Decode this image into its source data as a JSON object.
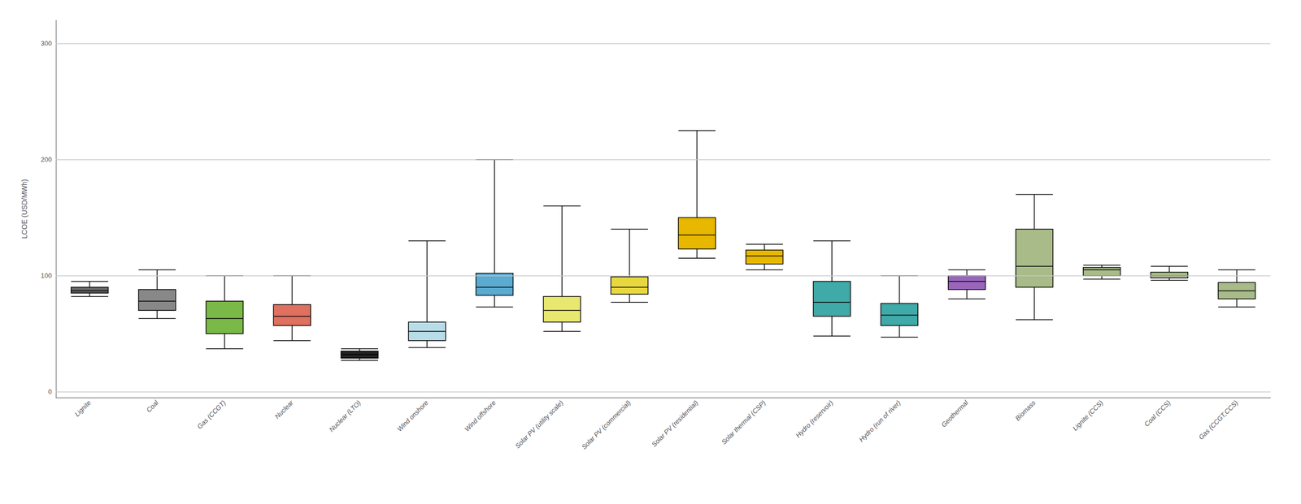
{
  "chart_data": {
    "type": "box",
    "ylabel": "LCOE (USD/MWh)",
    "categories": [
      "Lignite",
      "Coal",
      "Gas (CCGT)",
      "Nuclear",
      "Nuclear (LTO)",
      "Wind onshore",
      "Wind offshore",
      "Solar PV (utility scale)",
      "Solar PV (commercial)",
      "Solar PV (residential)",
      "Solar thermal (CSP)",
      "Hydro (reservoir)",
      "Hydro (run of river)",
      "Geothermal",
      "Biomass",
      "Lignite (CCS)",
      "Coal (CCS)",
      "Gas (CCGT,CCS)"
    ],
    "values": [
      [
        82,
        85,
        87,
        90,
        95
      ],
      [
        63,
        70,
        78,
        88,
        105
      ],
      [
        37,
        50,
        63,
        78,
        100
      ],
      [
        44,
        57,
        65,
        75,
        100
      ],
      [
        27,
        29,
        32,
        35,
        37
      ],
      [
        38,
        44,
        52,
        60,
        130
      ],
      [
        73,
        83,
        90,
        102,
        200
      ],
      [
        52,
        60,
        70,
        82,
        160
      ],
      [
        77,
        84,
        90,
        99,
        140
      ],
      [
        115,
        123,
        135,
        150,
        225
      ],
      [
        105,
        110,
        117,
        122,
        127
      ],
      [
        48,
        65,
        77,
        95,
        130
      ],
      [
        47,
        57,
        66,
        76,
        100
      ],
      [
        80,
        88,
        95,
        100,
        105
      ],
      [
        62,
        90,
        108,
        140,
        170
      ],
      [
        97,
        100,
        105,
        107,
        109
      ],
      [
        96,
        98,
        100,
        103,
        108
      ],
      [
        73,
        80,
        87,
        94,
        105
      ]
    ],
    "colors": [
      "#666666",
      "#888888",
      "#7ab848",
      "#e07060",
      "#222222",
      "#b8dde8",
      "#5baad0",
      "#e8e870",
      "#e8d840",
      "#e8b800",
      "#e8b800",
      "#40aaa8",
      "#40aaa8",
      "#9966bb",
      "#a8bb88",
      "#a8bb88",
      "#a8bb88",
      "#a8bb88"
    ],
    "ylim": [
      -5,
      320
    ],
    "yticks": [
      0,
      100,
      200,
      300
    ],
    "grid": true
  }
}
